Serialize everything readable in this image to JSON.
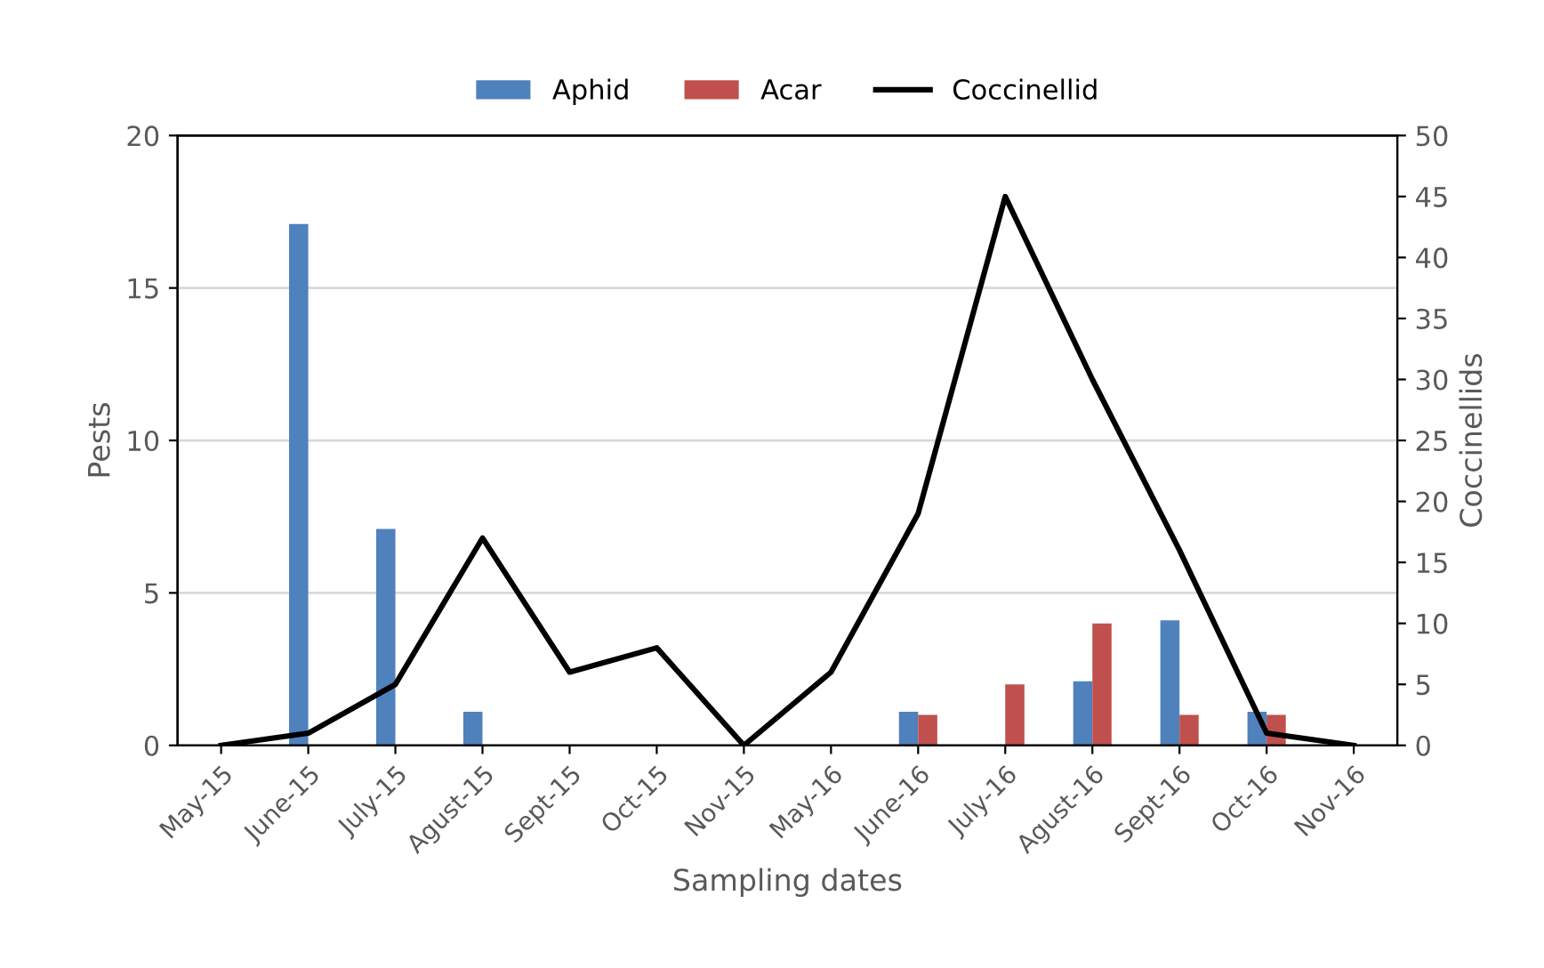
{
  "chart_data": {
    "type": "bar",
    "xlabel": "Sampling dates",
    "ylabel": "Pests",
    "y2label": "Coccinellids",
    "categories": [
      "May-15",
      "June-15",
      "July-15",
      "Agust-15",
      "Sept-15",
      "Oct-15",
      "Nov-15",
      "May-16",
      "June-16",
      "July-16",
      "Agust-16",
      "Sept-16",
      "Oct-16",
      "Nov-16"
    ],
    "series": [
      {
        "name": "Aphid",
        "color": "#4f81bd",
        "values": [
          0,
          17.1,
          7.1,
          1.1,
          0,
          0,
          0,
          0,
          1.1,
          0,
          2.1,
          4.1,
          1.1,
          0
        ]
      },
      {
        "name": "Acar",
        "color": "#c0504d",
        "values": [
          0,
          0,
          0,
          0,
          0,
          0,
          0,
          0,
          1,
          2,
          4,
          1,
          1,
          0
        ]
      },
      {
        "name": "Coccinellid",
        "type": "line",
        "axis": "y2",
        "color": "#000000",
        "values": [
          0,
          1,
          5,
          17,
          6,
          8,
          0,
          6,
          19,
          45,
          30,
          16,
          1,
          0
        ]
      }
    ],
    "ylim": [
      0,
      20
    ],
    "yticks": [
      0,
      5,
      10,
      15,
      20
    ],
    "y2lim": [
      0,
      50
    ],
    "y2ticks": [
      0,
      5,
      10,
      15,
      20,
      25,
      30,
      35,
      40,
      45,
      50
    ],
    "grid": "y",
    "legend": "top",
    "marker": "none",
    "line_style": "solid"
  }
}
